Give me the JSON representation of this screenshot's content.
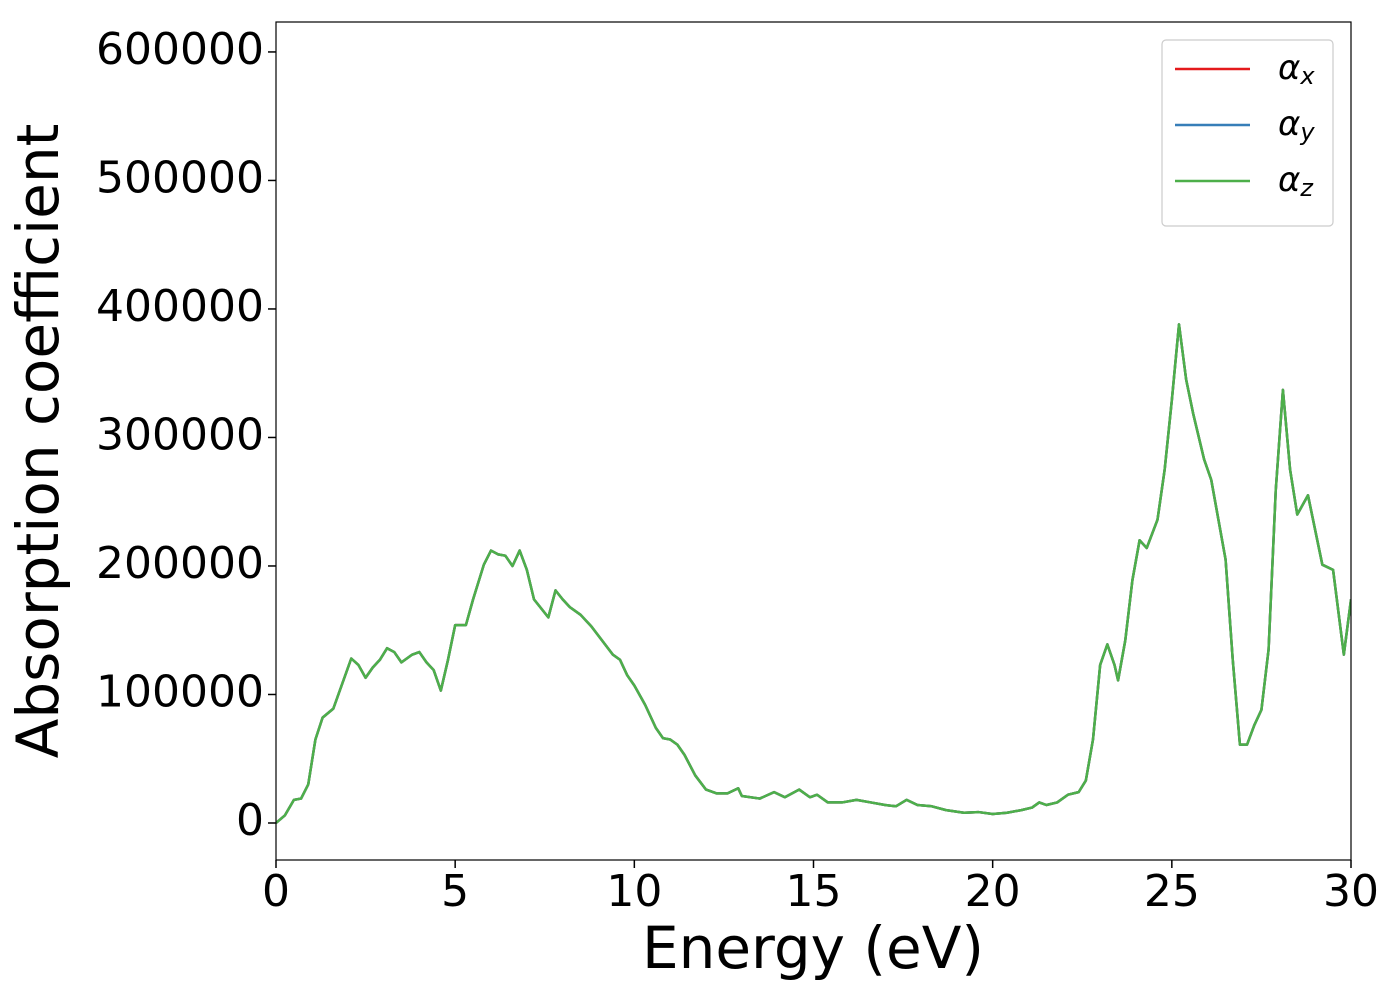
{
  "chart_data": {
    "type": "line",
    "xlabel": "Energy (eV)",
    "ylabel": "Absorption coefficient",
    "x": [
      0,
      0.25,
      0.5,
      0.7,
      0.9,
      1.1,
      1.3,
      1.6,
      2.1,
      2.3,
      2.5,
      2.7,
      2.9,
      3.1,
      3.3,
      3.5,
      3.8,
      4.0,
      4.2,
      4.4,
      4.6,
      4.8,
      5.0,
      5.3,
      5.5,
      5.8,
      6.0,
      6.2,
      6.4,
      6.6,
      6.8,
      7.0,
      7.2,
      7.4,
      7.6,
      7.8,
      8.0,
      8.2,
      8.5,
      8.8,
      9.1,
      9.4,
      9.6,
      9.8,
      10.0,
      10.3,
      10.6,
      10.8,
      11.0,
      11.2,
      11.4,
      11.7,
      12.0,
      12.3,
      12.6,
      12.9,
      13.0,
      13.5,
      13.9,
      14.2,
      14.6,
      14.9,
      15.1,
      15.4,
      15.8,
      16.2,
      16.6,
      17.0,
      17.3,
      17.6,
      17.9,
      18.3,
      18.7,
      19.2,
      19.6,
      20.0,
      20.4,
      20.8,
      21.1,
      21.3,
      21.5,
      21.8,
      22.1,
      22.4,
      22.6,
      22.8,
      23.0,
      23.2,
      23.4,
      23.5,
      23.7,
      23.9,
      24.1,
      24.3,
      24.6,
      24.8,
      25.0,
      25.2,
      25.4,
      25.6,
      25.9,
      26.1,
      26.3,
      26.5,
      26.7,
      26.9,
      27.1,
      27.3,
      27.5,
      27.7,
      27.9,
      28.1,
      28.3,
      28.5,
      28.8,
      29.0,
      29.2,
      29.5,
      29.8,
      30.0
    ],
    "series": [
      {
        "name": "αx",
        "color": "#e41a1c",
        "values": [
          0,
          6000,
          18000,
          19000,
          30000,
          65000,
          82000,
          89000,
          128000,
          123000,
          113000,
          121000,
          127000,
          136000,
          133000,
          125000,
          131000,
          133000,
          125000,
          119000,
          103000,
          127000,
          154000,
          154000,
          174000,
          201000,
          212000,
          209000,
          208000,
          200000,
          212000,
          197000,
          174000,
          167000,
          160000,
          181000,
          174000,
          168000,
          162000,
          153000,
          142000,
          131000,
          127000,
          115000,
          107000,
          92000,
          74000,
          66000,
          65000,
          61000,
          53000,
          37000,
          26000,
          23000,
          23000,
          27000,
          21000,
          19000,
          24000,
          20000,
          26000,
          20000,
          22000,
          16000,
          16000,
          18000,
          16000,
          14000,
          13000,
          18000,
          14000,
          13000,
          10000,
          8000,
          8500,
          7000,
          8000,
          10000,
          12000,
          16000,
          14000,
          16000,
          22000,
          24000,
          33000,
          65000,
          123000,
          139000,
          123000,
          111000,
          142000,
          189000,
          220000,
          214000,
          236000,
          275000,
          329000,
          388000,
          345000,
          318000,
          283000,
          267000,
          236000,
          205000,
          127000,
          61000,
          61000,
          76000,
          88000,
          135000,
          259000,
          337000,
          275000,
          240000,
          255000,
          228000,
          201000,
          197000,
          131000,
          174000
        ]
      },
      {
        "name": "αy",
        "color": "#377eb8",
        "values": [
          0,
          6000,
          18000,
          19000,
          30000,
          65000,
          82000,
          89000,
          128000,
          123000,
          113000,
          121000,
          127000,
          136000,
          133000,
          125000,
          131000,
          133000,
          125000,
          119000,
          103000,
          127000,
          154000,
          154000,
          174000,
          201000,
          212000,
          209000,
          208000,
          200000,
          212000,
          197000,
          174000,
          167000,
          160000,
          181000,
          174000,
          168000,
          162000,
          153000,
          142000,
          131000,
          127000,
          115000,
          107000,
          92000,
          74000,
          66000,
          65000,
          61000,
          53000,
          37000,
          26000,
          23000,
          23000,
          27000,
          21000,
          19000,
          24000,
          20000,
          26000,
          20000,
          22000,
          16000,
          16000,
          18000,
          16000,
          14000,
          13000,
          18000,
          14000,
          13000,
          10000,
          8000,
          8500,
          7000,
          8000,
          10000,
          12000,
          16000,
          14000,
          16000,
          22000,
          24000,
          33000,
          65000,
          123000,
          139000,
          123000,
          111000,
          142000,
          189000,
          220000,
          214000,
          236000,
          275000,
          329000,
          388000,
          345000,
          318000,
          283000,
          267000,
          236000,
          205000,
          127000,
          61000,
          61000,
          76000,
          88000,
          135000,
          259000,
          337000,
          275000,
          240000,
          255000,
          228000,
          201000,
          197000,
          131000,
          174000
        ]
      },
      {
        "name": "αz",
        "color": "#4daf4a",
        "values": [
          0,
          6000,
          18000,
          19000,
          30000,
          65000,
          82000,
          89000,
          128000,
          123000,
          113000,
          121000,
          127000,
          136000,
          133000,
          125000,
          131000,
          133000,
          125000,
          119000,
          103000,
          127000,
          154000,
          154000,
          174000,
          201000,
          212000,
          209000,
          208000,
          200000,
          212000,
          197000,
          174000,
          167000,
          160000,
          181000,
          174000,
          168000,
          162000,
          153000,
          142000,
          131000,
          127000,
          115000,
          107000,
          92000,
          74000,
          66000,
          65000,
          61000,
          53000,
          37000,
          26000,
          23000,
          23000,
          27000,
          21000,
          19000,
          24000,
          20000,
          26000,
          20000,
          22000,
          16000,
          16000,
          18000,
          16000,
          14000,
          13000,
          18000,
          14000,
          13000,
          10000,
          8000,
          8500,
          7000,
          8000,
          10000,
          12000,
          16000,
          14000,
          16000,
          22000,
          24000,
          33000,
          65000,
          123000,
          139000,
          123000,
          111000,
          142000,
          189000,
          220000,
          214000,
          236000,
          275000,
          329000,
          388000,
          345000,
          318000,
          283000,
          267000,
          236000,
          205000,
          127000,
          61000,
          61000,
          76000,
          88000,
          135000,
          259000,
          337000,
          275000,
          240000,
          255000,
          228000,
          201000,
          197000,
          131000,
          174000
        ]
      }
    ],
    "xlim": [
      0,
      30
    ],
    "xticks": [
      0,
      5,
      10,
      15,
      20,
      25,
      30
    ],
    "ylim": [
      -28800,
      623300
    ],
    "yticks": [
      0,
      100000,
      200000,
      300000,
      400000,
      500000,
      600000
    ],
    "legend": "upper right",
    "grid": false
  }
}
